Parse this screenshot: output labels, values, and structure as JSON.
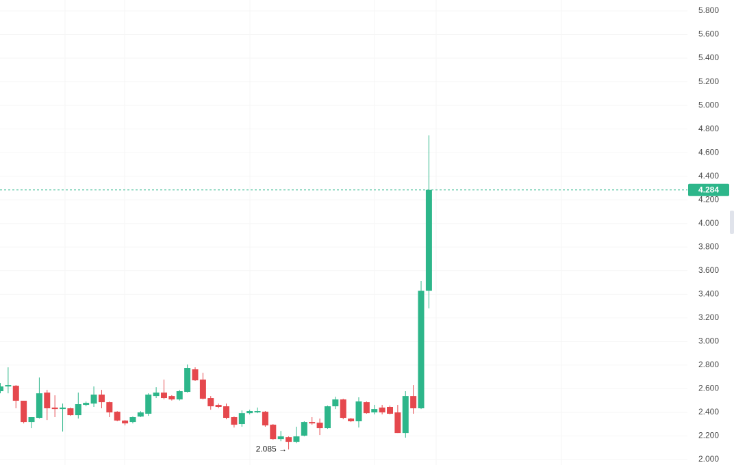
{
  "chart_data": {
    "type": "candlestick",
    "up_color": "#2db68a",
    "down_color": "#e5484d",
    "grid": true,
    "ylim": [
      2.0,
      5.8
    ],
    "yticks": [
      {
        "value": 2.0,
        "label": "2.000"
      },
      {
        "value": 2.2,
        "label": "2.200"
      },
      {
        "value": 2.4,
        "label": "2.400"
      },
      {
        "value": 2.6,
        "label": "2.600"
      },
      {
        "value": 2.8,
        "label": "2.800"
      },
      {
        "value": 3.0,
        "label": "3.000"
      },
      {
        "value": 3.2,
        "label": "3.200"
      },
      {
        "value": 3.4,
        "label": "3.400"
      },
      {
        "value": 3.6,
        "label": "3.600"
      },
      {
        "value": 3.8,
        "label": "3.800"
      },
      {
        "value": 4.0,
        "label": "4.000"
      },
      {
        "value": 4.2,
        "label": "4.200"
      },
      {
        "value": 4.4,
        "label": "4.400"
      },
      {
        "value": 4.6,
        "label": "4.600"
      },
      {
        "value": 4.8,
        "label": "4.800"
      },
      {
        "value": 5.0,
        "label": "5.000"
      },
      {
        "value": 5.2,
        "label": "5.200"
      },
      {
        "value": 5.4,
        "label": "5.400"
      },
      {
        "value": 5.6,
        "label": "5.600"
      },
      {
        "value": 5.8,
        "label": "5.800"
      }
    ],
    "low_label": "2.085 →",
    "open": [
      2.579,
      2.619,
      2.625,
      2.498,
      2.318,
      2.353,
      2.567,
      2.44,
      2.428,
      2.434,
      2.376,
      2.463,
      2.474,
      2.55,
      2.486,
      2.405,
      2.33,
      2.318,
      2.364,
      2.388,
      2.538,
      2.567,
      2.538,
      2.509,
      2.573,
      2.764,
      2.677,
      2.521,
      2.463,
      2.451,
      2.359,
      2.301,
      2.393,
      2.399,
      2.405,
      2.295,
      2.173,
      2.19,
      2.15,
      2.202,
      2.318,
      2.312,
      2.266,
      2.451,
      2.509,
      2.347,
      2.324,
      2.486,
      2.399,
      2.44,
      2.446,
      2.399,
      2.225,
      2.538,
      2.434,
      3.43
    ],
    "high": [
      2.648,
      2.781,
      2.631,
      2.498,
      2.359,
      2.695,
      2.59,
      2.544,
      2.474,
      2.44,
      2.567,
      2.491,
      2.619,
      2.59,
      2.491,
      2.41,
      2.335,
      2.365,
      2.41,
      2.561,
      2.613,
      2.677,
      2.545,
      2.59,
      2.805,
      2.781,
      2.735,
      2.538,
      2.474,
      2.474,
      2.365,
      2.416,
      2.422,
      2.44,
      2.411,
      2.301,
      2.242,
      2.196,
      2.278,
      2.324,
      2.359,
      2.347,
      2.457,
      2.532,
      2.515,
      2.353,
      2.527,
      2.492,
      2.463,
      2.463,
      2.457,
      2.463,
      2.579,
      2.631,
      3.512,
      4.746
    ],
    "low": [
      2.561,
      2.561,
      2.434,
      2.306,
      2.266,
      2.347,
      2.335,
      2.359,
      2.237,
      2.37,
      2.347,
      2.451,
      2.446,
      2.434,
      2.359,
      2.324,
      2.289,
      2.306,
      2.359,
      2.37,
      2.521,
      2.509,
      2.5,
      2.5,
      2.567,
      2.666,
      2.509,
      2.422,
      2.434,
      2.341,
      2.271,
      2.278,
      2.382,
      2.393,
      2.278,
      2.167,
      2.155,
      2.085,
      2.138,
      2.196,
      2.295,
      2.208,
      2.26,
      2.428,
      2.341,
      2.318,
      2.271,
      2.388,
      2.382,
      2.382,
      2.382,
      2.225,
      2.185,
      2.388,
      2.428,
      3.28
    ],
    "close": [
      2.619,
      2.631,
      2.498,
      2.318,
      2.359,
      2.561,
      2.434,
      2.428,
      2.44,
      2.376,
      2.469,
      2.48,
      2.55,
      2.486,
      2.399,
      2.33,
      2.306,
      2.359,
      2.399,
      2.55,
      2.567,
      2.521,
      2.509,
      2.579,
      2.776,
      2.671,
      2.515,
      2.451,
      2.446,
      2.353,
      2.295,
      2.393,
      2.411,
      2.411,
      2.289,
      2.173,
      2.196,
      2.15,
      2.196,
      2.318,
      2.306,
      2.266,
      2.451,
      2.509,
      2.353,
      2.324,
      2.492,
      2.393,
      2.428,
      2.399,
      2.388,
      2.225,
      2.538,
      2.434,
      3.43,
      4.284
    ]
  }
}
